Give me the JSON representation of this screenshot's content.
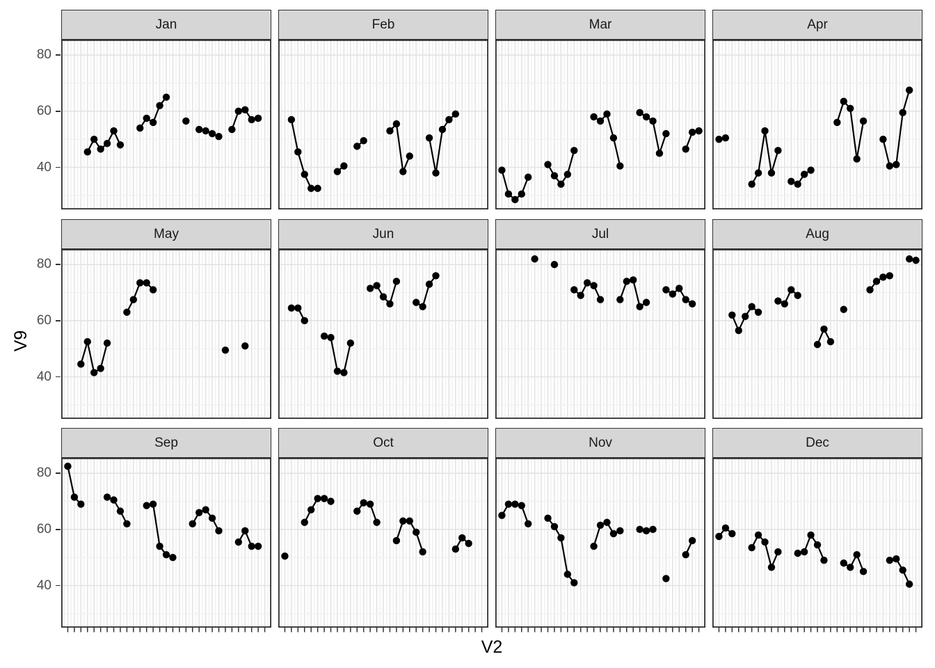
{
  "figure": {
    "xlabel": "V2",
    "ylabel": "V9"
  },
  "style": {
    "strip_fill": "#d6d6d6",
    "strip_border": "#2f2f2f",
    "panel_border": "#2f2f2f",
    "panel_background": "#ffffff",
    "grid_major": "#e3e3e3",
    "grid_minor": "#f0f0f0",
    "axis_tick_color": "#333333",
    "axis_tick_label_color": "#4d4d4d",
    "point_color": "#000000",
    "line_color": "#000000"
  },
  "chart_data": {
    "type": "line",
    "title": "",
    "xlabel": "V2",
    "ylabel": "V9",
    "faceted_by": "month",
    "facet_layout": {
      "rows": 3,
      "cols": 4
    },
    "x_domain": [
      1,
      31
    ],
    "ylim": [
      25,
      85.5
    ],
    "y_major_ticks": [
      40,
      60,
      80
    ],
    "y_minor_gridlines": [
      30,
      50,
      70
    ],
    "x_axis_tick_labels": "none (one small tick per day 1-31, bottom row only)",
    "grid": "vertical gridline per day with half-day minors; horizontal majors 40/60/80 with minors 30/50/70",
    "legend": "none",
    "connect_rule": "points on consecutive days are joined by line segments; gaps break the line",
    "facets": [
      {
        "label": "Jan",
        "points": [
          [
            4,
            45.5
          ],
          [
            5,
            50
          ],
          [
            6,
            46.5
          ],
          [
            7,
            48.5
          ],
          [
            8,
            53
          ],
          [
            9,
            48
          ],
          [
            12,
            54
          ],
          [
            13,
            57.5
          ],
          [
            14,
            56
          ],
          [
            15,
            62
          ],
          [
            16,
            65
          ],
          [
            19,
            56.5
          ],
          [
            21,
            53.5
          ],
          [
            22,
            53
          ],
          [
            23,
            52
          ],
          [
            24,
            51
          ],
          [
            26,
            53.5
          ],
          [
            27,
            60
          ],
          [
            28,
            60.5
          ],
          [
            29,
            57
          ],
          [
            30,
            57.5
          ]
        ]
      },
      {
        "label": "Feb",
        "points": [
          [
            2,
            57
          ],
          [
            3,
            45.5
          ],
          [
            4,
            37.5
          ],
          [
            5,
            32.5
          ],
          [
            6,
            32.5
          ],
          [
            9,
            38.5
          ],
          [
            10,
            40.5
          ],
          [
            12,
            47.5
          ],
          [
            13,
            49.5
          ],
          [
            17,
            53
          ],
          [
            18,
            55.5
          ],
          [
            19,
            38.5
          ],
          [
            20,
            44
          ],
          [
            23,
            50.5
          ],
          [
            24,
            38
          ],
          [
            25,
            53.5
          ],
          [
            26,
            57
          ],
          [
            27,
            59
          ]
        ]
      },
      {
        "label": "Mar",
        "points": [
          [
            1,
            39
          ],
          [
            2,
            30.5
          ],
          [
            3,
            28.5
          ],
          [
            4,
            30.5
          ],
          [
            5,
            36.5
          ],
          [
            8,
            41
          ],
          [
            9,
            37
          ],
          [
            10,
            34
          ],
          [
            11,
            37.5
          ],
          [
            12,
            46
          ],
          [
            15,
            58
          ],
          [
            16,
            56.5
          ],
          [
            17,
            59
          ],
          [
            18,
            50.5
          ],
          [
            19,
            40.5
          ],
          [
            22,
            59.5
          ],
          [
            23,
            58
          ],
          [
            24,
            56.5
          ],
          [
            25,
            45
          ],
          [
            26,
            52
          ],
          [
            29,
            46.5
          ],
          [
            30,
            52.5
          ],
          [
            31,
            53
          ]
        ]
      },
      {
        "label": "Apr",
        "points": [
          [
            1,
            50
          ],
          [
            2,
            50.5
          ],
          [
            6,
            34
          ],
          [
            7,
            38
          ],
          [
            8,
            53
          ],
          [
            9,
            38
          ],
          [
            10,
            46
          ],
          [
            12,
            35
          ],
          [
            13,
            34
          ],
          [
            14,
            37.5
          ],
          [
            15,
            39
          ],
          [
            19,
            56
          ],
          [
            20,
            63.5
          ],
          [
            21,
            61
          ],
          [
            22,
            43
          ],
          [
            23,
            56.5
          ],
          [
            26,
            50
          ],
          [
            27,
            40.5
          ],
          [
            28,
            41
          ],
          [
            29,
            59.5
          ],
          [
            30,
            67.5
          ]
        ]
      },
      {
        "label": "May",
        "points": [
          [
            3,
            44.5
          ],
          [
            4,
            52.5
          ],
          [
            5,
            41.5
          ],
          [
            6,
            43
          ],
          [
            7,
            52
          ],
          [
            10,
            63
          ],
          [
            11,
            67.5
          ],
          [
            12,
            73.5
          ],
          [
            13,
            73.5
          ],
          [
            14,
            71
          ],
          [
            25,
            49.5
          ],
          [
            28,
            51
          ]
        ]
      },
      {
        "label": "Jun",
        "points": [
          [
            2,
            64.5
          ],
          [
            3,
            64.5
          ],
          [
            4,
            60
          ],
          [
            7,
            54.5
          ],
          [
            8,
            54
          ],
          [
            9,
            42
          ],
          [
            10,
            41.5
          ],
          [
            11,
            52
          ],
          [
            14,
            71.5
          ],
          [
            15,
            72.5
          ],
          [
            16,
            68.5
          ],
          [
            17,
            66
          ],
          [
            18,
            74
          ],
          [
            21,
            66.5
          ],
          [
            22,
            65
          ],
          [
            23,
            73
          ],
          [
            24,
            76
          ]
        ]
      },
      {
        "label": "Jul",
        "points": [
          [
            6,
            82
          ],
          [
            9,
            80
          ],
          [
            12,
            71
          ],
          [
            13,
            69
          ],
          [
            14,
            73.5
          ],
          [
            15,
            72.5
          ],
          [
            16,
            67.5
          ],
          [
            19,
            67.5
          ],
          [
            20,
            74
          ],
          [
            21,
            74.5
          ],
          [
            22,
            65
          ],
          [
            23,
            66.5
          ],
          [
            26,
            71
          ],
          [
            27,
            69.5
          ],
          [
            28,
            71.5
          ],
          [
            29,
            67.5
          ],
          [
            30,
            66
          ]
        ]
      },
      {
        "label": "Aug",
        "points": [
          [
            3,
            62
          ],
          [
            4,
            56.5
          ],
          [
            5,
            61.5
          ],
          [
            6,
            65
          ],
          [
            7,
            63
          ],
          [
            10,
            67
          ],
          [
            11,
            66
          ],
          [
            12,
            71
          ],
          [
            13,
            69
          ],
          [
            16,
            51.5
          ],
          [
            17,
            57
          ],
          [
            18,
            52.5
          ],
          [
            20,
            64
          ],
          [
            24,
            71
          ],
          [
            25,
            74
          ],
          [
            26,
            75.5
          ],
          [
            27,
            76
          ],
          [
            30,
            82
          ],
          [
            31,
            81.5
          ]
        ]
      },
      {
        "label": "Sep",
        "points": [
          [
            1,
            82.5
          ],
          [
            2,
            71.5
          ],
          [
            3,
            69
          ],
          [
            7,
            71.5
          ],
          [
            8,
            70.5
          ],
          [
            9,
            66.5
          ],
          [
            10,
            62
          ],
          [
            13,
            68.5
          ],
          [
            14,
            69
          ],
          [
            15,
            54
          ],
          [
            16,
            51
          ],
          [
            17,
            50
          ],
          [
            20,
            62
          ],
          [
            21,
            66
          ],
          [
            22,
            67
          ],
          [
            23,
            64
          ],
          [
            24,
            59.5
          ],
          [
            27,
            55.5
          ],
          [
            28,
            59.5
          ],
          [
            29,
            54
          ],
          [
            30,
            54
          ]
        ]
      },
      {
        "label": "Oct",
        "points": [
          [
            1,
            50.5
          ],
          [
            4,
            62.5
          ],
          [
            5,
            67
          ],
          [
            6,
            71
          ],
          [
            7,
            71
          ],
          [
            8,
            70
          ],
          [
            12,
            66.5
          ],
          [
            13,
            69.5
          ],
          [
            14,
            69
          ],
          [
            15,
            62.5
          ],
          [
            18,
            56
          ],
          [
            19,
            63
          ],
          [
            20,
            63
          ],
          [
            21,
            59
          ],
          [
            22,
            52
          ],
          [
            27,
            53
          ],
          [
            28,
            57
          ],
          [
            29,
            55
          ]
        ]
      },
      {
        "label": "Nov",
        "points": [
          [
            1,
            65
          ],
          [
            2,
            69
          ],
          [
            3,
            69
          ],
          [
            4,
            68.5
          ],
          [
            5,
            62
          ],
          [
            8,
            64
          ],
          [
            9,
            61
          ],
          [
            10,
            57
          ],
          [
            11,
            44
          ],
          [
            12,
            41
          ],
          [
            15,
            54
          ],
          [
            16,
            61.5
          ],
          [
            17,
            62.5
          ],
          [
            18,
            58.5
          ],
          [
            19,
            59.5
          ],
          [
            22,
            60
          ],
          [
            23,
            59.5
          ],
          [
            24,
            60
          ],
          [
            26,
            42.5
          ],
          [
            29,
            51
          ],
          [
            30,
            56
          ]
        ]
      },
      {
        "label": "Dec",
        "points": [
          [
            1,
            57.5
          ],
          [
            2,
            60.5
          ],
          [
            3,
            58.5
          ],
          [
            6,
            53.5
          ],
          [
            7,
            58
          ],
          [
            8,
            55.5
          ],
          [
            9,
            46.5
          ],
          [
            10,
            52
          ],
          [
            13,
            51.5
          ],
          [
            14,
            52
          ],
          [
            15,
            58
          ],
          [
            16,
            54.5
          ],
          [
            17,
            49
          ],
          [
            20,
            48
          ],
          [
            21,
            46.5
          ],
          [
            22,
            51
          ],
          [
            23,
            45
          ],
          [
            27,
            49
          ],
          [
            28,
            49.5
          ],
          [
            29,
            45.5
          ],
          [
            30,
            40.5
          ]
        ]
      }
    ]
  }
}
